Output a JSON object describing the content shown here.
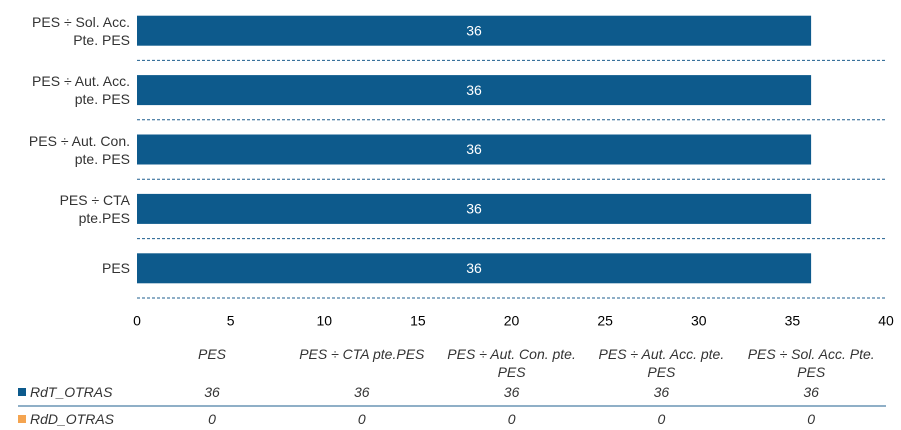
{
  "chart_data": {
    "type": "bar",
    "orientation": "horizontal",
    "categories": [
      "PES",
      "PES ÷ CTA pte.PES",
      "PES ÷ Aut. Con. pte. PES",
      "PES ÷ Aut. Acc. pte. PES",
      "PES ÷ Sol. Acc. Pte. PES"
    ],
    "series": [
      {
        "name": "RdT_OTRAS",
        "color": "#0d5a8c",
        "values": [
          36,
          36,
          36,
          36,
          36
        ]
      },
      {
        "name": "RdD_OTRAS",
        "color": "#f4a450",
        "values": [
          0,
          0,
          0,
          0,
          0
        ]
      }
    ],
    "xlim": [
      0,
      40
    ],
    "xticks": [
      0,
      5,
      10,
      15,
      20,
      25,
      30,
      35,
      40
    ]
  }
}
